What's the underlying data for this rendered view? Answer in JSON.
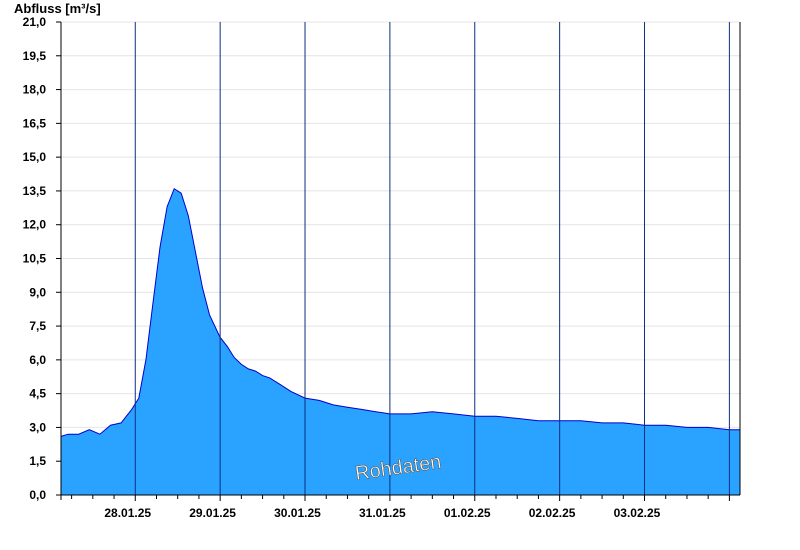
{
  "chart_data": {
    "type": "area",
    "title": "",
    "ylabel": "Abfluss [m³/s]",
    "xlabel": "",
    "ylim": [
      0,
      21
    ],
    "yticks": [
      0,
      1.5,
      3,
      4.5,
      6,
      7.5,
      9,
      10.5,
      12,
      13.5,
      15,
      16.5,
      18,
      19.5,
      21
    ],
    "ytick_labels": [
      "0,0",
      "1,5",
      "3,0",
      "4,5",
      "6,0",
      "7,5",
      "9,0",
      "10,5",
      "12,0",
      "13,5",
      "15,0",
      "16,5",
      "18,0",
      "19,5",
      "21,0"
    ],
    "x_start": "2025-01-27T03:00",
    "x_end": "2025-02-04T03:00",
    "day_boundaries": [
      "2025-01-28T00:00",
      "2025-01-29T00:00",
      "2025-01-30T00:00",
      "2025-01-31T00:00",
      "2025-02-01T00:00",
      "2025-02-02T00:00",
      "2025-02-03T00:00",
      "2025-02-04T00:00"
    ],
    "x_tick_labels": [
      "28.01.25",
      "29.01.25",
      "30.01.25",
      "31.01.25",
      "01.02.25",
      "02.02.25",
      "03.02.25"
    ],
    "grid": true,
    "fill_color": "#29a3ff",
    "line_color": "#0000cc",
    "watermark": "Rohdaten",
    "series": [
      {
        "x": [
          "2025-01-27T03:00",
          "2025-01-27T05:00",
          "2025-01-27T08:00",
          "2025-01-27T11:00",
          "2025-01-27T14:00",
          "2025-01-27T17:00",
          "2025-01-27T20:00",
          "2025-01-27T23:00",
          "2025-01-28T01:00",
          "2025-01-28T03:00",
          "2025-01-28T05:00",
          "2025-01-28T07:00",
          "2025-01-28T09:00",
          "2025-01-28T11:00",
          "2025-01-28T13:00",
          "2025-01-28T15:00",
          "2025-01-28T17:00",
          "2025-01-28T19:00",
          "2025-01-28T21:00",
          "2025-01-29T00:00",
          "2025-01-29T02:00",
          "2025-01-29T04:00",
          "2025-01-29T06:00",
          "2025-01-29T08:00",
          "2025-01-29T10:00",
          "2025-01-29T12:00",
          "2025-01-29T14:00",
          "2025-01-29T17:00",
          "2025-01-29T20:00",
          "2025-01-30T00:00",
          "2025-01-30T04:00",
          "2025-01-30T08:00",
          "2025-01-30T12:00",
          "2025-01-30T16:00",
          "2025-01-30T20:00",
          "2025-01-31T00:00",
          "2025-01-31T06:00",
          "2025-01-31T12:00",
          "2025-01-31T18:00",
          "2025-02-01T00:00",
          "2025-02-01T06:00",
          "2025-02-01T12:00",
          "2025-02-01T18:00",
          "2025-02-02T00:00",
          "2025-02-02T06:00",
          "2025-02-02T12:00",
          "2025-02-02T18:00",
          "2025-02-03T00:00",
          "2025-02-03T06:00",
          "2025-02-03T12:00",
          "2025-02-03T18:00",
          "2025-02-04T00:00",
          "2025-02-04T03:00"
        ],
        "values": [
          2.6,
          2.7,
          2.7,
          2.9,
          2.7,
          3.1,
          3.2,
          3.8,
          4.3,
          6.0,
          8.5,
          11.0,
          12.8,
          13.6,
          13.4,
          12.4,
          10.8,
          9.2,
          8.0,
          7.0,
          6.6,
          6.1,
          5.8,
          5.6,
          5.5,
          5.3,
          5.2,
          4.9,
          4.6,
          4.3,
          4.2,
          4.0,
          3.9,
          3.8,
          3.7,
          3.6,
          3.6,
          3.7,
          3.6,
          3.5,
          3.5,
          3.4,
          3.3,
          3.3,
          3.3,
          3.2,
          3.2,
          3.1,
          3.1,
          3.0,
          3.0,
          2.9,
          2.9
        ]
      }
    ]
  }
}
